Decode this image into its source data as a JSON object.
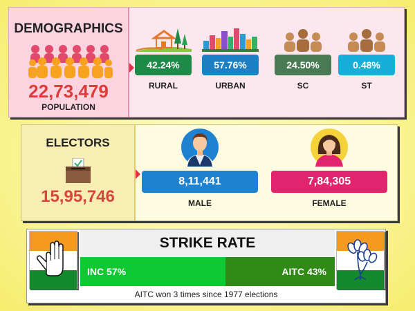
{
  "demographics": {
    "title": "DEMOGRAPHICS",
    "population": "22,73,479",
    "population_label": "POPULATION",
    "stats": [
      {
        "value": "42.24%",
        "label": "RURAL",
        "color": "#1e8a48",
        "icon": "rural-house-trees-icon"
      },
      {
        "value": "57.76%",
        "label": "URBAN",
        "color": "#1d7fc4",
        "icon": "city-skyline-icon"
      },
      {
        "value": "24.50%",
        "label": "SC",
        "color": "#4a7a54",
        "icon": "people-group-icon"
      },
      {
        "value": "0.48%",
        "label": "ST",
        "color": "#17aed8",
        "icon": "people-group-icon"
      }
    ]
  },
  "electors": {
    "title": "ELECTORS",
    "total": "15,95,746",
    "male": {
      "value": "8,11,441",
      "label": "MALE",
      "color": "#1f82d0",
      "icon": "male-avatar-icon"
    },
    "female": {
      "value": "7,84,305",
      "label": "FEMALE",
      "color": "#e2246e",
      "icon": "female-avatar-icon"
    }
  },
  "strike_rate": {
    "title": "STRIKE RATE",
    "inc": {
      "label": "INC 57%",
      "value": 57,
      "color": "#0fc832"
    },
    "aitc": {
      "label": "AITC 43%",
      "value": 43,
      "color": "#2f8b16"
    },
    "footer": "AITC won 3 times since 1977 elections"
  }
}
